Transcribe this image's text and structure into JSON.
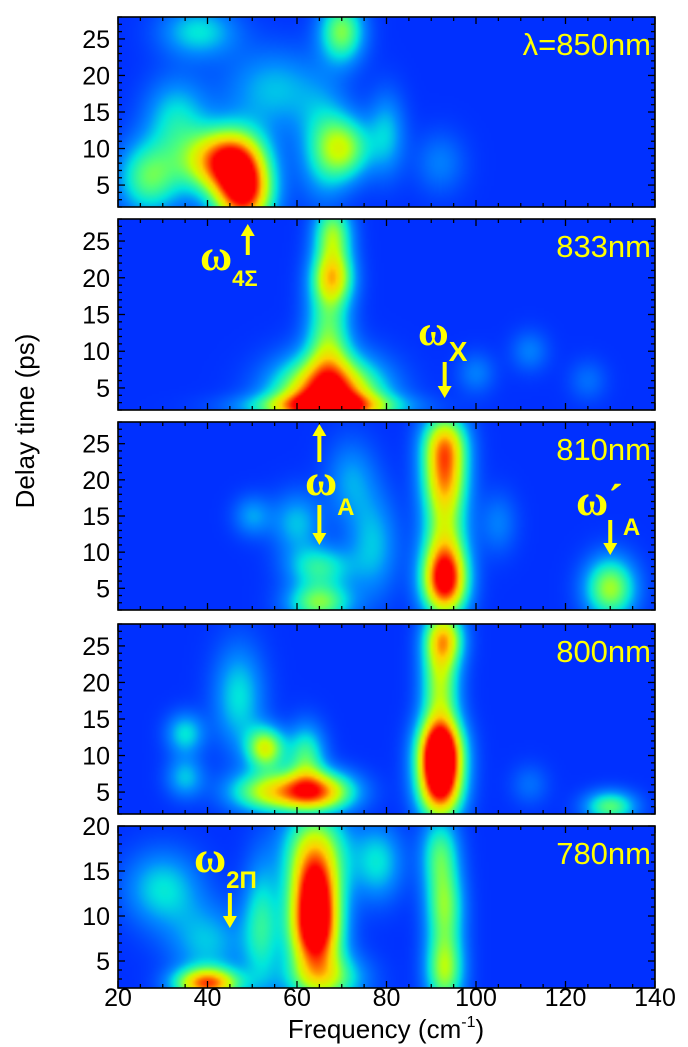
{
  "chart_data": {
    "type": "heatmap",
    "xlabel": "Frequency (cm",
    "xlabel_sup": "-1",
    "xlabel_close": ")",
    "ylabel": "Delay time (ps)",
    "xlim": [
      20,
      140
    ],
    "x_ticks": [
      20,
      40,
      60,
      80,
      100,
      120,
      140
    ],
    "colors": {
      "background": "#0030ff",
      "peak": "#ff0000",
      "annotation": "#ffff00"
    },
    "panels": [
      {
        "label": "λ=850nm",
        "ylim": [
          2,
          28
        ],
        "y_ticks": [
          5,
          10,
          15,
          20,
          25
        ],
        "blobs": [
          {
            "x": 48,
            "y": 4,
            "sx": 4.5,
            "sy": 3.5,
            "v": 1.0
          },
          {
            "x": 46,
            "y": 9,
            "sx": 5,
            "sy": 3,
            "v": 0.6
          },
          {
            "x": 40,
            "y": 8,
            "sx": 5,
            "sy": 3,
            "v": 0.45
          },
          {
            "x": 27,
            "y": 6,
            "sx": 5,
            "sy": 3.5,
            "v": 0.45
          },
          {
            "x": 33,
            "y": 14,
            "sx": 5,
            "sy": 4,
            "v": 0.3
          },
          {
            "x": 55,
            "y": 18,
            "sx": 8,
            "sy": 4,
            "v": 0.25
          },
          {
            "x": 70,
            "y": 26,
            "sx": 3.5,
            "sy": 3,
            "v": 0.5
          },
          {
            "x": 71,
            "y": 10,
            "sx": 4,
            "sy": 3,
            "v": 0.45
          },
          {
            "x": 66,
            "y": 10,
            "sx": 4,
            "sy": 5,
            "v": 0.3
          },
          {
            "x": 38,
            "y": 26,
            "sx": 6,
            "sy": 2.5,
            "v": 0.3
          },
          {
            "x": 80,
            "y": 12,
            "sx": 3,
            "sy": 4,
            "v": 0.25
          },
          {
            "x": 92,
            "y": 8,
            "sx": 4,
            "sy": 3,
            "v": 0.15
          }
        ]
      },
      {
        "label": "833nm",
        "ylim": [
          2,
          28
        ],
        "y_ticks": [
          5,
          10,
          15,
          20,
          25
        ],
        "blobs": [
          {
            "x": 67,
            "y": 4,
            "sx": 8,
            "sy": 3.5,
            "v": 1.0
          },
          {
            "x": 67,
            "y": 12,
            "sx": 3.5,
            "sy": 6,
            "v": 0.45
          },
          {
            "x": 68,
            "y": 20,
            "sx": 3.2,
            "sy": 2.5,
            "v": 0.55
          },
          {
            "x": 68,
            "y": 26,
            "sx": 3,
            "sy": 3,
            "v": 0.5
          },
          {
            "x": 66,
            "y": 2.5,
            "sx": 12,
            "sy": 1.2,
            "v": 0.5
          },
          {
            "x": 100,
            "y": 7,
            "sx": 3,
            "sy": 2,
            "v": 0.15
          },
          {
            "x": 112,
            "y": 10,
            "sx": 3,
            "sy": 2,
            "v": 0.15
          },
          {
            "x": 125,
            "y": 6,
            "sx": 3,
            "sy": 2,
            "v": 0.12
          }
        ]
      },
      {
        "label": "810nm",
        "ylim": [
          2,
          28
        ],
        "y_ticks": [
          5,
          10,
          15,
          20,
          25
        ],
        "blobs": [
          {
            "x": 93,
            "y": 6,
            "sx": 3.5,
            "sy": 3.5,
            "v": 1.0
          },
          {
            "x": 93,
            "y": 14,
            "sx": 3.5,
            "sy": 5,
            "v": 0.5
          },
          {
            "x": 93,
            "y": 25,
            "sx": 3.5,
            "sy": 3,
            "v": 0.7
          },
          {
            "x": 93,
            "y": 20,
            "sx": 3.5,
            "sy": 3,
            "v": 0.45
          },
          {
            "x": 130,
            "y": 5,
            "sx": 4,
            "sy": 3,
            "v": 0.55
          },
          {
            "x": 65,
            "y": 3,
            "sx": 5,
            "sy": 2,
            "v": 0.5
          },
          {
            "x": 65,
            "y": 8,
            "sx": 5,
            "sy": 2,
            "v": 0.35
          },
          {
            "x": 60,
            "y": 14,
            "sx": 4,
            "sy": 3,
            "v": 0.25
          },
          {
            "x": 77,
            "y": 11,
            "sx": 4,
            "sy": 5,
            "v": 0.25
          },
          {
            "x": 72,
            "y": 20,
            "sx": 4,
            "sy": 4,
            "v": 0.2
          },
          {
            "x": 50,
            "y": 15,
            "sx": 3,
            "sy": 2,
            "v": 0.2
          },
          {
            "x": 105,
            "y": 14,
            "sx": 3,
            "sy": 3,
            "v": 0.15
          }
        ]
      },
      {
        "label": "800nm",
        "ylim": [
          2,
          28
        ],
        "y_ticks": [
          5,
          10,
          15,
          20,
          25
        ],
        "blobs": [
          {
            "x": 92,
            "y": 6,
            "sx": 3.5,
            "sy": 3.5,
            "v": 1.0
          },
          {
            "x": 92,
            "y": 11,
            "sx": 3.5,
            "sy": 3,
            "v": 0.9
          },
          {
            "x": 92,
            "y": 20,
            "sx": 3,
            "sy": 6,
            "v": 0.55
          },
          {
            "x": 93,
            "y": 26,
            "sx": 3,
            "sy": 2.5,
            "v": 0.5
          },
          {
            "x": 64,
            "y": 5,
            "sx": 6,
            "sy": 2,
            "v": 0.85
          },
          {
            "x": 53,
            "y": 5,
            "sx": 6,
            "sy": 2,
            "v": 0.5
          },
          {
            "x": 53,
            "y": 11,
            "sx": 3,
            "sy": 2,
            "v": 0.6
          },
          {
            "x": 62,
            "y": 10,
            "sx": 3,
            "sy": 3,
            "v": 0.4
          },
          {
            "x": 47,
            "y": 18,
            "sx": 4,
            "sy": 5,
            "v": 0.3
          },
          {
            "x": 35,
            "y": 13,
            "sx": 3,
            "sy": 2,
            "v": 0.3
          },
          {
            "x": 35,
            "y": 7,
            "sx": 3,
            "sy": 2,
            "v": 0.25
          },
          {
            "x": 130,
            "y": 3,
            "sx": 4,
            "sy": 1.5,
            "v": 0.45
          },
          {
            "x": 112,
            "y": 6,
            "sx": 3,
            "sy": 2,
            "v": 0.12
          }
        ]
      },
      {
        "label": "780nm",
        "ylim": [
          2,
          20
        ],
        "y_ticks": [
          5,
          10,
          15,
          20
        ],
        "blobs": [
          {
            "x": 64,
            "y": 8,
            "sx": 4,
            "sy": 3,
            "v": 1.0
          },
          {
            "x": 64,
            "y": 13,
            "sx": 4,
            "sy": 3,
            "v": 0.85
          },
          {
            "x": 66,
            "y": 3,
            "sx": 6,
            "sy": 2,
            "v": 0.5
          },
          {
            "x": 64,
            "y": 18,
            "sx": 5,
            "sy": 3,
            "v": 0.5
          },
          {
            "x": 40,
            "y": 2.5,
            "sx": 5,
            "sy": 1.2,
            "v": 0.85
          },
          {
            "x": 52,
            "y": 9,
            "sx": 3,
            "sy": 5,
            "v": 0.35
          },
          {
            "x": 93,
            "y": 4,
            "sx": 3,
            "sy": 3,
            "v": 0.55
          },
          {
            "x": 93,
            "y": 11,
            "sx": 3,
            "sy": 3,
            "v": 0.45
          },
          {
            "x": 92,
            "y": 17,
            "sx": 3,
            "sy": 3,
            "v": 0.4
          },
          {
            "x": 30,
            "y": 13,
            "sx": 6,
            "sy": 3,
            "v": 0.3
          },
          {
            "x": 40,
            "y": 7,
            "sx": 6,
            "sy": 3,
            "v": 0.25
          },
          {
            "x": 78,
            "y": 16,
            "sx": 4,
            "sy": 3,
            "v": 0.3
          }
        ]
      }
    ],
    "annotations": [
      {
        "panel": 1,
        "main": "ω",
        "sub": "4Σ",
        "arrow_x": 49,
        "dir": "up"
      },
      {
        "panel": 1,
        "main": "ω",
        "sub": "X",
        "arrow_x": 93,
        "dir": "down"
      },
      {
        "panel": 2,
        "main": "ω",
        "sub": "A",
        "arrow_x": 65,
        "dir": "both"
      },
      {
        "panel": 2,
        "main": "ω´",
        "sub": "A",
        "arrow_x": 130,
        "dir": "down"
      },
      {
        "panel": 4,
        "main": "ω",
        "sub": "2Π",
        "arrow_x": 45,
        "dir": "down"
      }
    ]
  }
}
